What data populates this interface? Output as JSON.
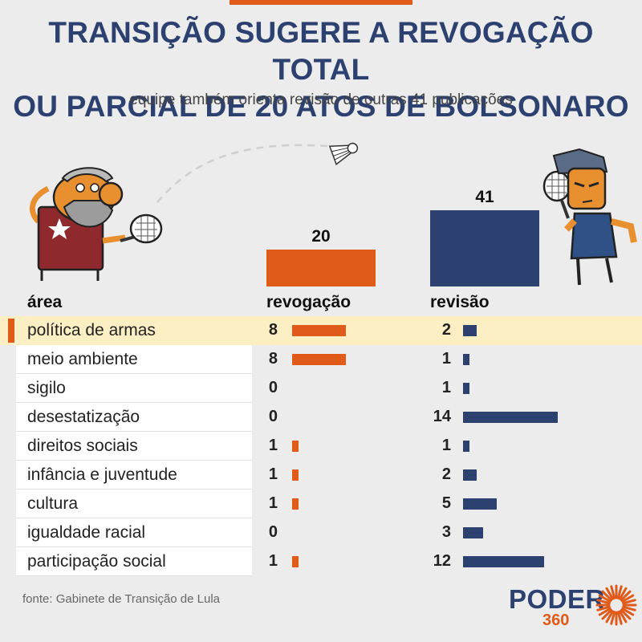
{
  "title_line1": "TRANSIÇÃO SUGERE A REVOGAÇÃO TOTAL",
  "title_line2": "OU PARCIAL DE 20 ATOS DE BOLSONARO",
  "subtitle": "equipe também orienta revisão de outras 41 publicações",
  "headers": {
    "area": "área",
    "revogacao": "revogação",
    "revisao": "revisão"
  },
  "source": "fonte: Gabinete de Transição de Lula",
  "logo": {
    "word": "PODER",
    "number": "360"
  },
  "colors": {
    "revogacao": "#e05a1a",
    "revisao": "#2c4170",
    "title": "#2c4170",
    "highlight": "#fcefc4"
  },
  "chart_data": {
    "type": "bar",
    "totals": [
      {
        "label": "revogação",
        "value": 20,
        "value_label": "20"
      },
      {
        "label": "revisão",
        "value": 41,
        "value_label": "41"
      }
    ],
    "categories": [
      "política de armas",
      "meio ambiente",
      "sigilo",
      "desestatização",
      "direitos sociais",
      "infância e juventude",
      "cultura",
      "igualdade racial",
      "participação social"
    ],
    "series": [
      {
        "name": "revogação",
        "values": [
          8,
          8,
          0,
          0,
          1,
          1,
          1,
          0,
          1
        ]
      },
      {
        "name": "revisão",
        "values": [
          2,
          1,
          1,
          14,
          1,
          2,
          5,
          3,
          12
        ]
      }
    ],
    "highlighted_category": "política de armas"
  }
}
